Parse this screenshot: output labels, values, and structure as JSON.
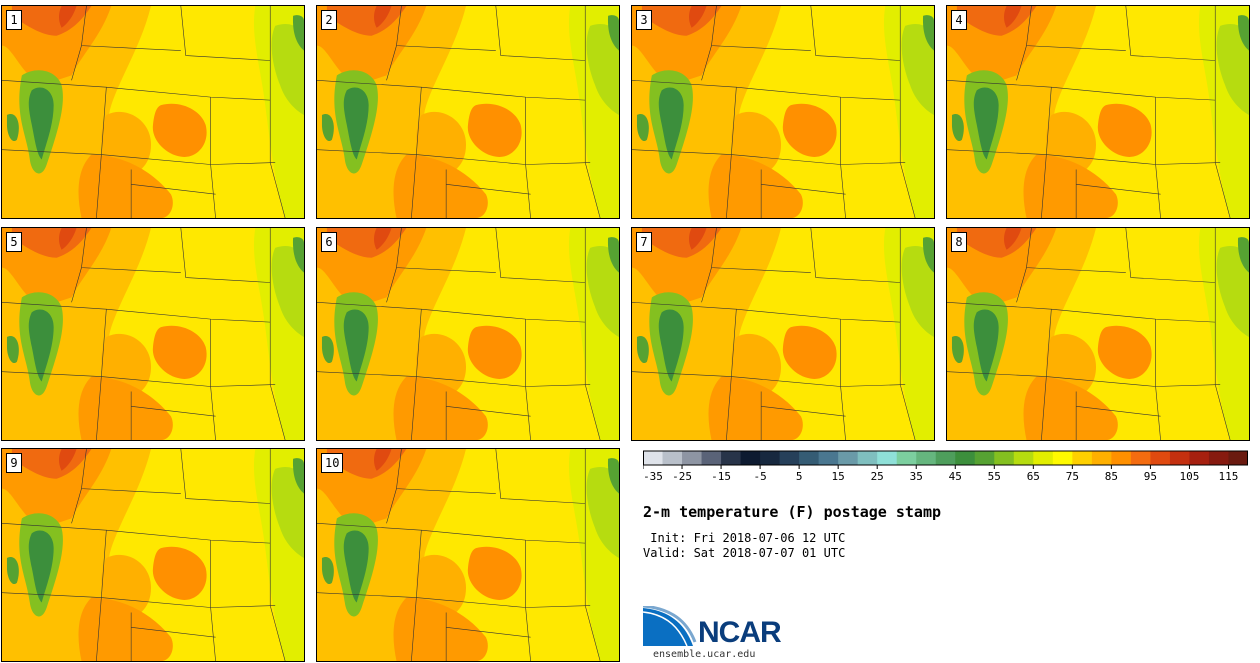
{
  "panels": [
    {
      "label": "1"
    },
    {
      "label": "2"
    },
    {
      "label": "3"
    },
    {
      "label": "4"
    },
    {
      "label": "5"
    },
    {
      "label": "6"
    },
    {
      "label": "7"
    },
    {
      "label": "8"
    },
    {
      "label": "9"
    },
    {
      "label": "10"
    }
  ],
  "colorbar": {
    "colors": [
      "#dfe3ea",
      "#b9c0ca",
      "#8e95a3",
      "#5a6378",
      "#283449",
      "#0d1a30",
      "#17283f",
      "#26405a",
      "#355c74",
      "#4a7790",
      "#6a9aa8",
      "#7fbfbf",
      "#8fe0d8",
      "#7ccf9f",
      "#65b67e",
      "#4e9e5c",
      "#3c8f3c",
      "#56a232",
      "#84c020",
      "#b6dc10",
      "#e2ee00",
      "#fffa00",
      "#ffd000",
      "#ffb000",
      "#ff9000",
      "#f46c10",
      "#e04a10",
      "#c43010",
      "#a62010",
      "#861a10",
      "#6a1a10"
    ],
    "tick_labels": [
      "-35",
      "-25",
      "-15",
      "-5",
      "5",
      "15",
      "25",
      "35",
      "45",
      "55",
      "65",
      "75",
      "85",
      "95",
      "105",
      "115"
    ]
  },
  "title": "2-m temperature (F) postage stamp",
  "init_text": " Init: Fri 2018-07-06 12 UTC",
  "valid_text": "Valid: Sat 2018-07-07 01 UTC",
  "logo": {
    "name": "NCAR",
    "url": "ensemble.ucar.edu"
  }
}
